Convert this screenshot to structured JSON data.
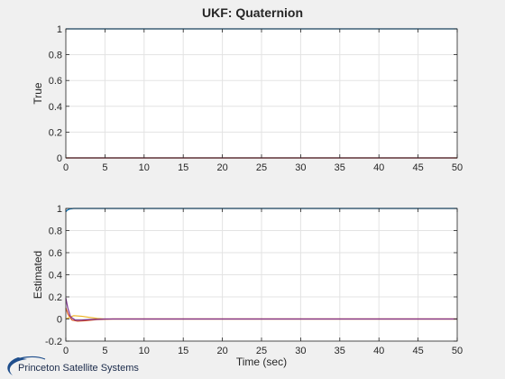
{
  "figure": {
    "title": "UKF: Quaternion",
    "logo_text": "Princeton Satellite Systems"
  },
  "colors": {
    "background": "#f0f0f0",
    "axes_face": "#ffffff",
    "grid": "#e3e3e3",
    "axis": "#262626",
    "logo_blue": "#1f4e8c"
  },
  "chart_data": [
    {
      "type": "line",
      "title": "UKF: Quaternion",
      "xlabel": "",
      "ylabel": "True",
      "xlim": [
        0,
        50
      ],
      "ylim": [
        0,
        1
      ],
      "xticks": [
        0,
        5,
        10,
        15,
        20,
        25,
        30,
        35,
        40,
        45,
        50
      ],
      "yticks": [
        0,
        0.2,
        0.4,
        0.6,
        0.8,
        1
      ],
      "ytick_labels": [
        "0",
        "0.2",
        "0.4",
        "0.6",
        "0.8",
        "1"
      ],
      "grid": true,
      "series": [
        {
          "color": "#0072bd",
          "x": [
            0,
            50
          ],
          "y": [
            1,
            1
          ]
        },
        {
          "color": "#d95319",
          "x": [
            0,
            50
          ],
          "y": [
            0,
            0
          ]
        },
        {
          "color": "#edb120",
          "x": [
            0,
            50
          ],
          "y": [
            0,
            0
          ]
        },
        {
          "color": "#7e2f8e",
          "x": [
            0,
            50
          ],
          "y": [
            0,
            0
          ]
        }
      ]
    },
    {
      "type": "line",
      "title": "",
      "xlabel": "Time (sec)",
      "ylabel": "Estimated",
      "xlim": [
        0,
        50
      ],
      "ylim": [
        -0.2,
        1
      ],
      "xticks": [
        0,
        5,
        10,
        15,
        20,
        25,
        30,
        35,
        40,
        45,
        50
      ],
      "yticks": [
        -0.2,
        0,
        0.2,
        0.4,
        0.6,
        0.8,
        1
      ],
      "ytick_labels": [
        "-0.2",
        "0",
        "0.2",
        "0.4",
        "0.6",
        "0.8",
        "1"
      ],
      "grid": true,
      "series": [
        {
          "color": "#0072bd",
          "x": [
            0,
            0.2,
            0.5,
            1,
            2,
            50
          ],
          "y": [
            0.97,
            0.985,
            0.995,
            1,
            1,
            1
          ]
        },
        {
          "color": "#d95319",
          "x": [
            0,
            0.3,
            0.8,
            1.5,
            2.5,
            4,
            6,
            50
          ],
          "y": [
            0.1,
            0.04,
            -0.01,
            -0.02,
            -0.015,
            -0.005,
            0,
            0
          ]
        },
        {
          "color": "#edb120",
          "x": [
            0,
            0.3,
            1,
            2,
            3,
            4,
            5,
            50
          ],
          "y": [
            0.0,
            0.01,
            0.03,
            0.025,
            0.015,
            0.005,
            0,
            0
          ]
        },
        {
          "color": "#7e2f8e",
          "x": [
            0,
            0.25,
            0.6,
            1.2,
            2,
            3,
            5,
            50
          ],
          "y": [
            0.19,
            0.1,
            0.02,
            -0.01,
            -0.01,
            -0.005,
            0,
            0
          ]
        }
      ]
    }
  ]
}
